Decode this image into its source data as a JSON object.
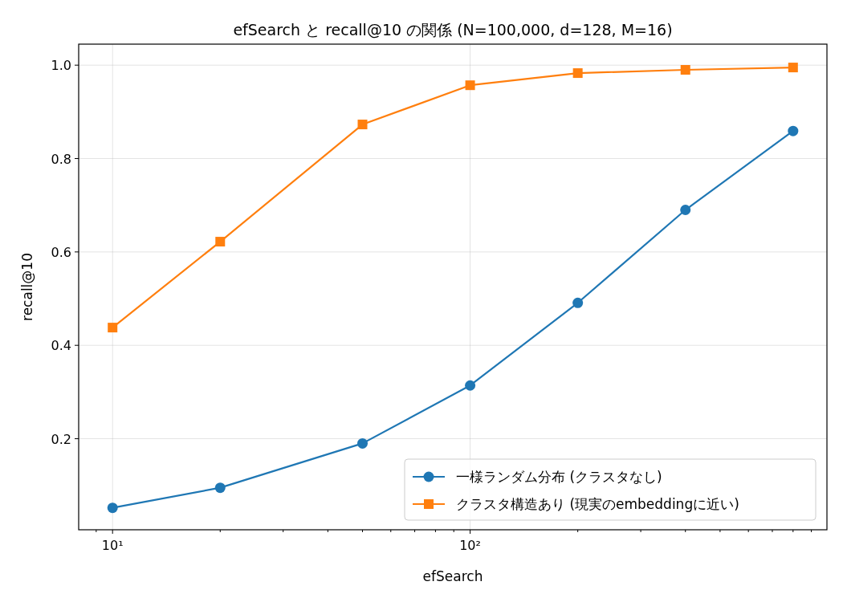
{
  "chart_data": {
    "type": "line",
    "title": "efSearch と recall@10 の関係 (N=100,000, d=128, M=16)",
    "xlabel": "efSearch",
    "ylabel": "recall@10",
    "log": "x",
    "x": [
      10,
      20,
      50,
      100,
      200,
      400,
      800
    ],
    "series": [
      {
        "name": "一様ランダム分布 (クラスタなし)",
        "color": "#1f77b4",
        "marker": "circle",
        "values": [
          0.052,
          0.095,
          0.19,
          0.314,
          0.491,
          0.69,
          0.859
        ]
      },
      {
        "name": "クラスタ構造あり (現実のembeddingに近い)",
        "color": "#ff7f0e",
        "marker": "square",
        "values": [
          0.438,
          0.622,
          0.873,
          0.957,
          0.983,
          0.99,
          0.995
        ]
      }
    ],
    "xlim": [
      8.04,
      995
    ],
    "xticks": [
      {
        "value": 9,
        "label": null
      },
      {
        "value": 10,
        "label": "10¹"
      },
      {
        "value": 20,
        "label": null
      },
      {
        "value": 30,
        "label": null
      },
      {
        "value": 40,
        "label": null
      },
      {
        "value": 50,
        "label": null
      },
      {
        "value": 60,
        "label": null
      },
      {
        "value": 70,
        "label": null
      },
      {
        "value": 80,
        "label": null
      },
      {
        "value": 90,
        "label": null
      },
      {
        "value": 100,
        "label": "10²"
      },
      {
        "value": 200,
        "label": null
      },
      {
        "value": 300,
        "label": null
      },
      {
        "value": 400,
        "label": null
      },
      {
        "value": 500,
        "label": null
      },
      {
        "value": 600,
        "label": null
      },
      {
        "value": 700,
        "label": null
      },
      {
        "value": 800,
        "label": null
      },
      {
        "value": 900,
        "label": null
      }
    ],
    "ylim": [
      0.005,
      1.045
    ],
    "yticks": [
      {
        "value": 0.2,
        "label": "0.2"
      },
      {
        "value": 0.4,
        "label": "0.4"
      },
      {
        "value": 0.6,
        "label": "0.6"
      },
      {
        "value": 0.8,
        "label": "0.8"
      },
      {
        "value": 1.0,
        "label": "1.0"
      }
    ],
    "grid": true,
    "legend": "bottom right",
    "line_style": "solid"
  }
}
